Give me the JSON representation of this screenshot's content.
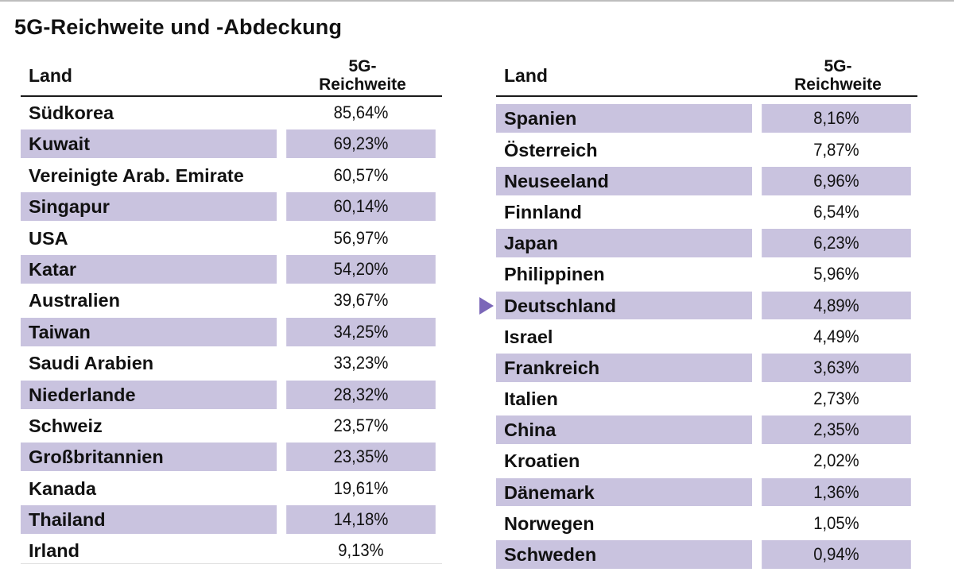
{
  "title": "5G-Reichweite und -Abdeckung",
  "headers": {
    "land": "Land",
    "value": "5G-\nReichweite"
  },
  "left_table": [
    {
      "land": "Südkorea",
      "value": "85,64%"
    },
    {
      "land": "Kuwait",
      "value": "69,23%"
    },
    {
      "land": "Vereinigte Arab. Emirate",
      "value": "60,57%"
    },
    {
      "land": "Singapur",
      "value": "60,14%"
    },
    {
      "land": "USA",
      "value": "56,97%"
    },
    {
      "land": "Katar",
      "value": "54,20%"
    },
    {
      "land": "Australien",
      "value": "39,67%"
    },
    {
      "land": "Taiwan",
      "value": "34,25%"
    },
    {
      "land": "Saudi Arabien",
      "value": "33,23%"
    },
    {
      "land": "Niederlande",
      "value": "28,32%"
    },
    {
      "land": "Schweiz",
      "value": "23,57%"
    },
    {
      "land": "Großbritannien",
      "value": "23,35%"
    },
    {
      "land": "Kanada",
      "value": "19,61%"
    },
    {
      "land": "Thailand",
      "value": "14,18%"
    },
    {
      "land": "Irland",
      "value": "9,13%"
    }
  ],
  "right_table": [
    {
      "land": "Spanien",
      "value": "8,16%"
    },
    {
      "land": "Österreich",
      "value": "7,87%"
    },
    {
      "land": "Neuseeland",
      "value": "6,96%"
    },
    {
      "land": "Finnland",
      "value": "6,54%"
    },
    {
      "land": "Japan",
      "value": "6,23%"
    },
    {
      "land": "Philippinen",
      "value": "5,96%"
    },
    {
      "land": "Deutschland",
      "value": "4,89%"
    },
    {
      "land": "Israel",
      "value": "4,49%"
    },
    {
      "land": "Frankreich",
      "value": "3,63%"
    },
    {
      "land": "Italien",
      "value": "2,73%"
    },
    {
      "land": "China",
      "value": "2,35%"
    },
    {
      "land": "Kroatien",
      "value": "2,02%"
    },
    {
      "land": "Dänemark",
      "value": "1,36%"
    },
    {
      "land": "Norwegen",
      "value": "1,05%"
    },
    {
      "land": "Schweden",
      "value": "0,94%"
    }
  ],
  "highlighted_country": "Deutschland",
  "colors": {
    "row_shade": "#c9c3df",
    "marker": "#7b67b8",
    "text": "#111111"
  }
}
